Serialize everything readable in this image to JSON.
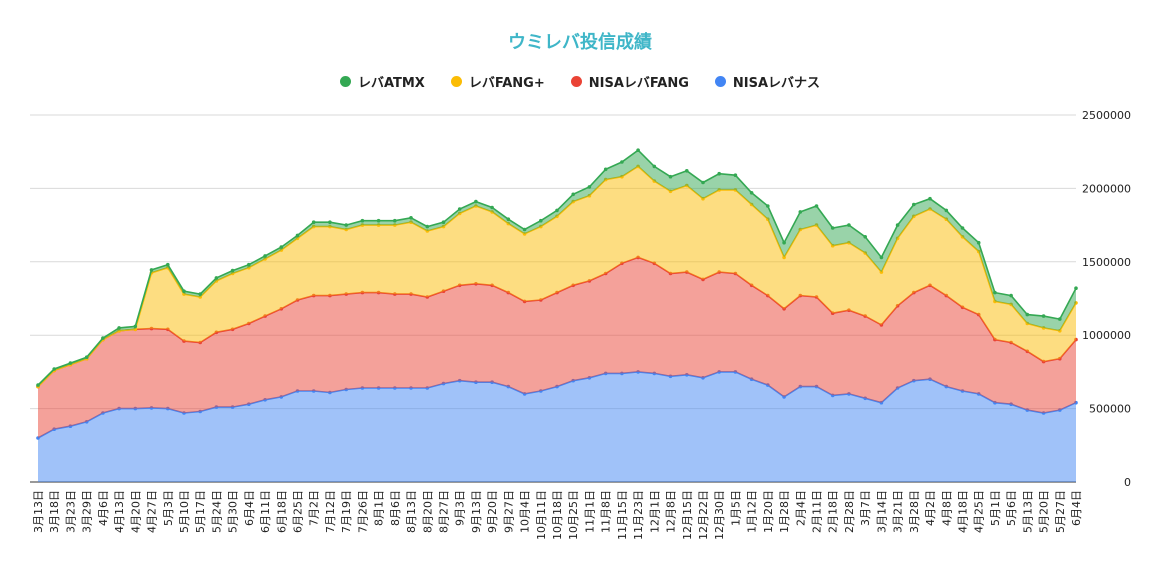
{
  "chart_data": {
    "type": "area",
    "stacked": true,
    "title": "ウミレバ投信成績",
    "ylim": [
      0,
      2500000
    ],
    "yticks": [
      0,
      500000,
      1000000,
      1500000,
      2000000,
      2500000
    ],
    "ytick_labels": [
      "0",
      "500000",
      "1000000",
      "1500000",
      "2000000",
      "2500000"
    ],
    "grid": true,
    "legend_position": "top",
    "categories": [
      "3月13日",
      "3月18日",
      "3月23日",
      "3月29日",
      "4月6日",
      "4月13日",
      "4月20日",
      "4月27日",
      "5月3日",
      "5月10日",
      "5月17日",
      "5月24日",
      "5月30日",
      "6月4日",
      "6月11日",
      "6月18日",
      "6月25日",
      "7月2日",
      "7月12日",
      "7月19日",
      "7月26日",
      "8月1日",
      "8月6日",
      "8月13日",
      "8月20日",
      "8月27日",
      "9月3日",
      "9月13日",
      "9月20日",
      "9月27日",
      "10月4日",
      "10月11日",
      "10月18日",
      "10月25日",
      "11月1日",
      "11月8日",
      "11月15日",
      "11月23日",
      "12月1日",
      "12月8日",
      "12月15日",
      "12月22日",
      "12月30日",
      "1月5日",
      "1月12日",
      "1月20日",
      "1月28日",
      "2月4日",
      "2月11日",
      "2月18日",
      "2月28日",
      "3月7日",
      "3月14日",
      "3月21日",
      "3月28日",
      "4月2日",
      "4月8日",
      "4月18日",
      "4月25日",
      "5月1日",
      "5月6日",
      "5月13日",
      "5月20日",
      "5月27日",
      "6月4日"
    ],
    "series": [
      {
        "name": "NISAレバナス",
        "color": "#4285f4",
        "values": [
          300000,
          360000,
          380000,
          410000,
          470000,
          500000,
          500000,
          505000,
          500000,
          470000,
          480000,
          510000,
          510000,
          530000,
          560000,
          580000,
          620000,
          620000,
          610000,
          630000,
          640000,
          640000,
          640000,
          640000,
          640000,
          670000,
          690000,
          680000,
          680000,
          650000,
          600000,
          620000,
          650000,
          690000,
          710000,
          740000,
          740000,
          750000,
          740000,
          720000,
          730000,
          710000,
          750000,
          750000,
          700000,
          660000,
          580000,
          650000,
          650000,
          590000,
          600000,
          570000,
          540000,
          640000,
          690000,
          700000,
          650000,
          620000,
          600000,
          540000,
          530000,
          490000,
          470000,
          490000,
          540000
        ]
      },
      {
        "name": "NISAレバFANG",
        "color": "#ea4335",
        "values": [
          350000,
          400000,
          420000,
          430000,
          500000,
          530000,
          540000,
          540000,
          540000,
          490000,
          470000,
          510000,
          530000,
          550000,
          570000,
          600000,
          620000,
          650000,
          660000,
          650000,
          650000,
          650000,
          640000,
          640000,
          620000,
          630000,
          650000,
          670000,
          660000,
          640000,
          630000,
          620000,
          640000,
          650000,
          660000,
          680000,
          750000,
          780000,
          750000,
          700000,
          700000,
          670000,
          680000,
          670000,
          640000,
          610000,
          600000,
          620000,
          610000,
          560000,
          570000,
          560000,
          530000,
          560000,
          600000,
          640000,
          620000,
          570000,
          540000,
          430000,
          420000,
          400000,
          350000,
          350000,
          430000
        ]
      },
      {
        "name": "レバFANG+",
        "color": "#fbbc04",
        "values": [
          0,
          0,
          0,
          0,
          0,
          0,
          0,
          380000,
          420000,
          320000,
          310000,
          350000,
          380000,
          380000,
          390000,
          400000,
          420000,
          470000,
          470000,
          440000,
          460000,
          460000,
          470000,
          490000,
          450000,
          440000,
          490000,
          530000,
          500000,
          470000,
          460000,
          500000,
          520000,
          570000,
          580000,
          640000,
          590000,
          620000,
          560000,
          560000,
          590000,
          550000,
          560000,
          570000,
          550000,
          520000,
          350000,
          450000,
          490000,
          460000,
          460000,
          430000,
          360000,
          460000,
          520000,
          520000,
          520000,
          480000,
          430000,
          260000,
          260000,
          190000,
          230000,
          190000,
          250000
        ]
      },
      {
        "name": "レバATMX",
        "color": "#34a853",
        "values": [
          10000,
          10000,
          10000,
          10000,
          10000,
          20000,
          20000,
          20000,
          20000,
          20000,
          20000,
          20000,
          20000,
          20000,
          20000,
          20000,
          20000,
          30000,
          30000,
          30000,
          30000,
          30000,
          30000,
          30000,
          30000,
          30000,
          30000,
          30000,
          30000,
          30000,
          30000,
          40000,
          40000,
          50000,
          60000,
          70000,
          100000,
          110000,
          100000,
          100000,
          100000,
          110000,
          110000,
          100000,
          80000,
          90000,
          100000,
          120000,
          130000,
          120000,
          120000,
          110000,
          100000,
          90000,
          80000,
          70000,
          60000,
          60000,
          60000,
          60000,
          60000,
          60000,
          80000,
          80000,
          100000
        ]
      }
    ]
  },
  "legend_order": [
    "レバATMX",
    "レバFANG+",
    "NISAレバFANG",
    "NISAレバナス"
  ],
  "legend_colors": {
    "レバATMX": "#34a853",
    "レバFANG+": "#fbbc04",
    "NISAレバFANG": "#ea4335",
    "NISAレバナス": "#4285f4"
  }
}
